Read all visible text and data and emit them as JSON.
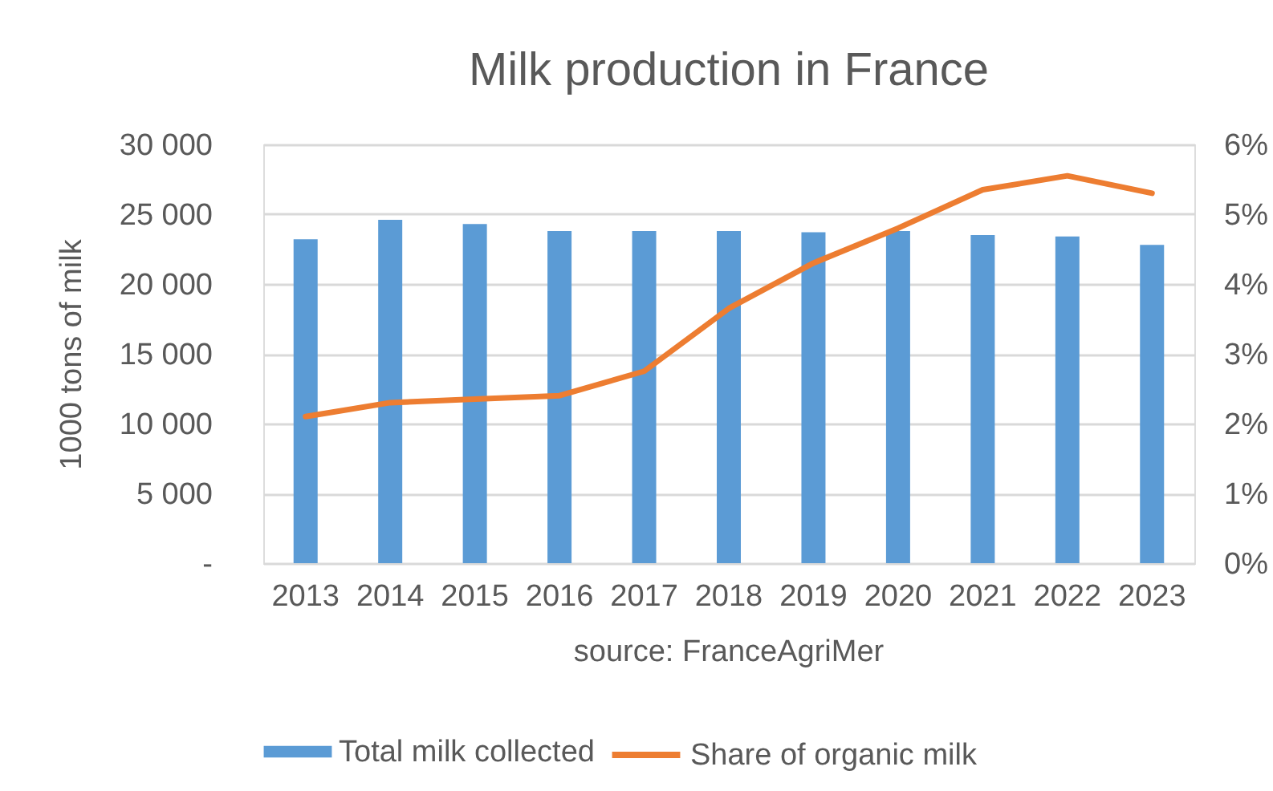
{
  "chart_data": {
    "type": "bar",
    "title": "Milk production in France",
    "ylabel": "1000 tons of milk",
    "annotations": [
      "source: FranceAgriMer"
    ],
    "categories": [
      "2013",
      "2014",
      "2015",
      "2016",
      "2017",
      "2018",
      "2019",
      "2020",
      "2021",
      "2022",
      "2023"
    ],
    "series": [
      {
        "name": "Total milk collected",
        "color": "#5b9bd5",
        "values": [
          23200,
          24600,
          24300,
          23800,
          23800,
          23800,
          23700,
          23800,
          23500,
          23400,
          22800
        ]
      },
      {
        "name": "Share of organic milk",
        "type": "line",
        "axis": "y2",
        "color": "#ed7d31",
        "values": [
          2.1,
          2.3,
          2.35,
          2.4,
          2.75,
          3.65,
          4.3,
          4.8,
          5.35,
          5.55,
          5.3
        ]
      }
    ],
    "ylim": [
      0,
      30000
    ],
    "yticks": [
      {
        "value": 0,
        "label": "-"
      },
      {
        "value": 5000,
        "label": "5 000"
      },
      {
        "value": 10000,
        "label": "10 000"
      },
      {
        "value": 15000,
        "label": "15 000"
      },
      {
        "value": 20000,
        "label": "20 000"
      },
      {
        "value": 25000,
        "label": "25 000"
      },
      {
        "value": 30000,
        "label": "30 000"
      }
    ],
    "y2lim": [
      0,
      6
    ],
    "y2ticks": [
      {
        "value": 0,
        "label": "0%"
      },
      {
        "value": 1,
        "label": "1%"
      },
      {
        "value": 2,
        "label": "2%"
      },
      {
        "value": 3,
        "label": "3%"
      },
      {
        "value": 4,
        "label": "4%"
      },
      {
        "value": 5,
        "label": "5%"
      },
      {
        "value": 6,
        "label": "6%"
      }
    ],
    "grid": "y",
    "legend": "bottom"
  }
}
